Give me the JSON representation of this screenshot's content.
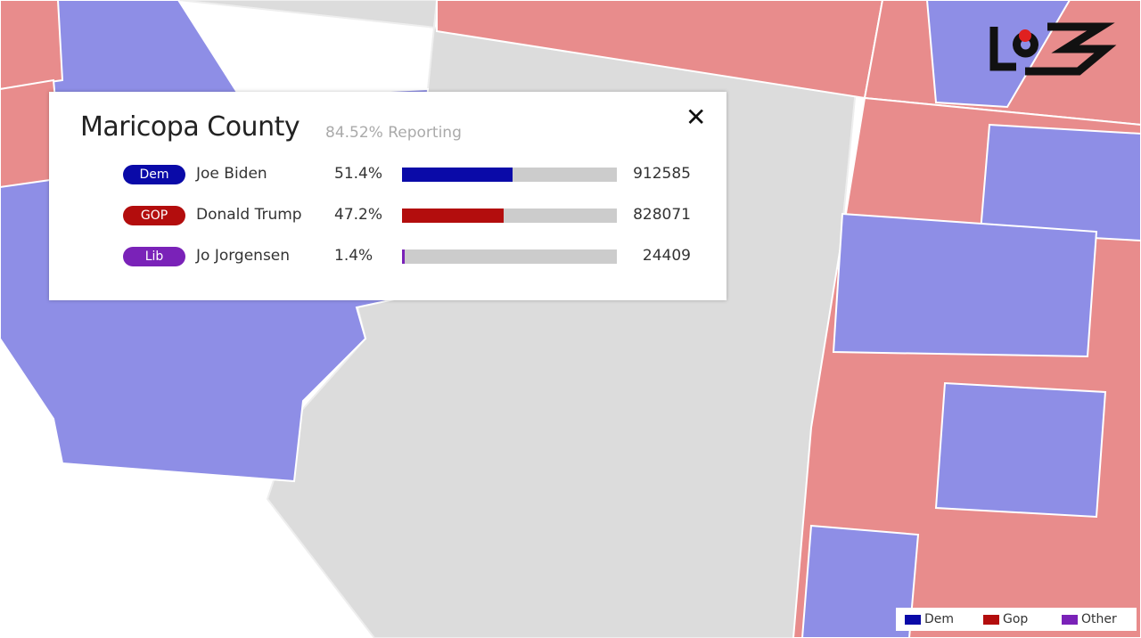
{
  "popup": {
    "title": "Maricopa County",
    "reporting": "84.52% Reporting",
    "close": "✕",
    "candidates": [
      {
        "party": "Dem",
        "name": "Joe Biden",
        "percent": {
          "value": 51.4,
          "label": "51.4%"
        },
        "votes": "912585",
        "color": "#0a0aa8"
      },
      {
        "party": "GOP",
        "name": "Donald Trump",
        "percent": {
          "value": 47.2,
          "label": "47.2%"
        },
        "votes": "828071",
        "color": "#b30d0d"
      },
      {
        "party": "Lib",
        "name": "Jo Jorgensen",
        "percent": {
          "value": 1.4,
          "label": "1.4%"
        },
        "votes": "24409",
        "color": "#7a22b8"
      }
    ]
  },
  "legend": [
    {
      "label": "Dem",
      "color": "#0a0aa8"
    },
    {
      "label": "Gop",
      "color": "#b30d0d"
    },
    {
      "label": "Other",
      "color": "#7a22b8"
    }
  ]
}
